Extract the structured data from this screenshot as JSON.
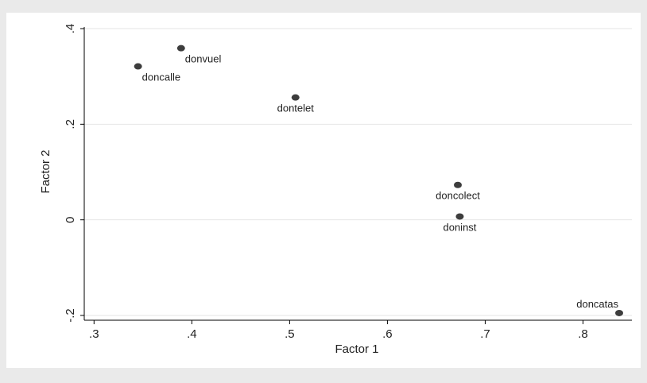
{
  "chart_data": {
    "type": "scatter",
    "title": "",
    "xlabel": "Factor 1",
    "ylabel": "Factor 2",
    "xlim": [
      0.29,
      0.85
    ],
    "ylim": [
      -0.21,
      0.41
    ],
    "xticks": [
      0.3,
      0.4,
      0.5,
      0.6,
      0.7,
      0.8
    ],
    "xtick_labels": [
      ".3",
      ".4",
      ".5",
      ".6",
      ".7",
      ".8"
    ],
    "yticks": [
      -0.2,
      0,
      0.2,
      0.4
    ],
    "ytick_labels": [
      "-.2",
      "0",
      ".2",
      ".4"
    ],
    "grid": true,
    "legend": "none",
    "colors": {
      "background": "#eaeaea",
      "plot_background": "#ffffff",
      "point": "#3d3d3d",
      "grid": "#e6e6e6",
      "axis": "#000000"
    },
    "points": [
      {
        "label": "donvuel",
        "x": 0.389,
        "y": 0.359,
        "label_pos": "below-right"
      },
      {
        "label": "doncalle",
        "x": 0.345,
        "y": 0.321,
        "label_pos": "below-right"
      },
      {
        "label": "dontelet",
        "x": 0.506,
        "y": 0.256,
        "label_pos": "below"
      },
      {
        "label": "doncolect",
        "x": 0.672,
        "y": 0.073,
        "label_pos": "below"
      },
      {
        "label": "doninst",
        "x": 0.674,
        "y": 0.007,
        "label_pos": "below"
      },
      {
        "label": "doncatas",
        "x": 0.837,
        "y": -0.195,
        "label_pos": "above-left"
      }
    ]
  }
}
